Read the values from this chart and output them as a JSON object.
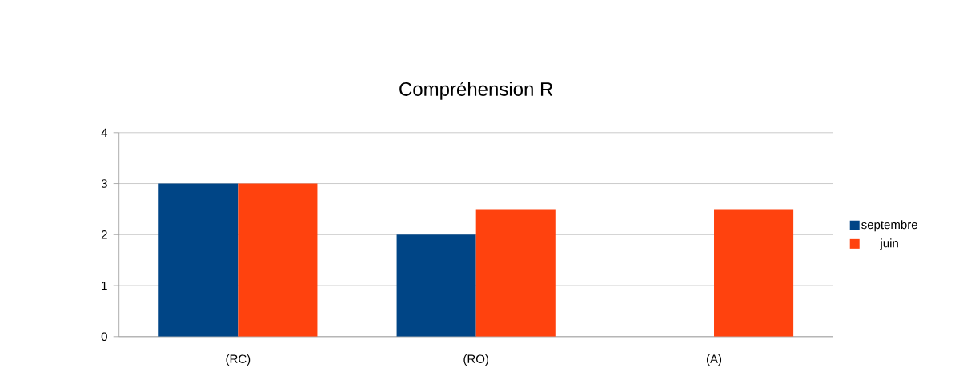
{
  "chart_data": {
    "type": "bar",
    "title": "Compréhension R",
    "categories": [
      "(RC)",
      "(RO)",
      "(A)"
    ],
    "series": [
      {
        "name": "septembre",
        "color": "#004586",
        "values": [
          3,
          2,
          null
        ]
      },
      {
        "name": "juin",
        "color": "#ff420e",
        "values": [
          3,
          2.5,
          2.5
        ]
      }
    ],
    "ylim": [
      0,
      4
    ],
    "yticks": [
      0,
      1,
      2,
      3,
      4
    ],
    "grid": "y",
    "legend": "right"
  }
}
